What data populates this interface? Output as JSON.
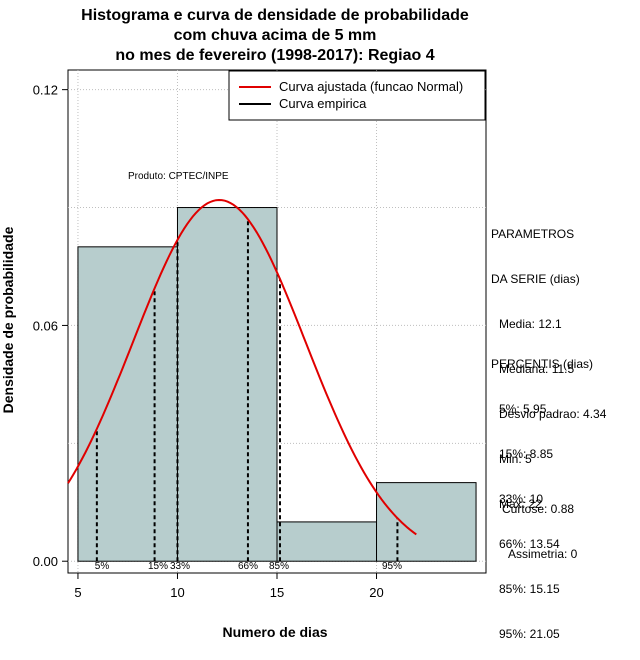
{
  "title_lines": [
    "Histograma e curva de densidade de probabilidade",
    "com chuva acima de 5 mm",
    "no mes de fevereiro (1998-2017): Regiao 4"
  ],
  "product_label": "Produto: CPTEC/INPE",
  "legend": {
    "fitted": "Curva ajustada (funcao Normal)",
    "empirical": "Curva empirica"
  },
  "parameters": {
    "heading": [
      "PARAMETROS",
      "DA SERIE (dias)"
    ],
    "lines": [
      "Media: 12.1",
      "Mediana: 11.5",
      "Desvio padrao: 4.34",
      "Min: 5",
      "Max: 22"
    ]
  },
  "percentiles": {
    "heading": "PERCENTIS (dias)",
    "lines": [
      "5%: 5.95",
      "15%: 8.85",
      "33%: 10",
      "66%: 13.54",
      "85%: 15.15",
      "95%: 21.05"
    ]
  },
  "shape": {
    "lines": [
      "Curtose: 0.88",
      "Assimetria: 0"
    ]
  },
  "colors": {
    "bar_fill": "#b7cdcd",
    "fitted_curve": "#e00000",
    "empirical_curve": "#000000",
    "grid": "#bfbfbf"
  },
  "chart_data": {
    "type": "bar",
    "xlabel": "Numero de dias",
    "ylabel": "Densidade de probabilidade",
    "xlim": [
      4.5,
      25.5
    ],
    "ylim": [
      -0.003,
      0.125
    ],
    "x_ticks": [
      5,
      10,
      15,
      20
    ],
    "y_ticks": [
      0.0,
      0.06,
      0.12
    ],
    "y_tick_labels": [
      "0.00",
      "0.06",
      "0.12"
    ],
    "bins": [
      {
        "x0": 5,
        "x1": 10,
        "density": 0.08
      },
      {
        "x0": 10,
        "x1": 15,
        "density": 0.09
      },
      {
        "x0": 15,
        "x1": 20,
        "density": 0.01
      },
      {
        "x0": 20,
        "x1": 25,
        "density": 0.02
      }
    ],
    "normal_fit": {
      "mean": 12.1,
      "sd": 4.34,
      "x_range": [
        4.5,
        22
      ]
    },
    "percentile_marks": [
      {
        "label": "5%",
        "x": 5.95
      },
      {
        "label": "15%",
        "x": 8.85
      },
      {
        "label": "33%",
        "x": 10
      },
      {
        "label": "66%",
        "x": 13.54
      },
      {
        "label": "85%",
        "x": 15.15
      },
      {
        "label": "95%",
        "x": 21.05
      }
    ],
    "grid": true,
    "legend_position": "top-right"
  }
}
